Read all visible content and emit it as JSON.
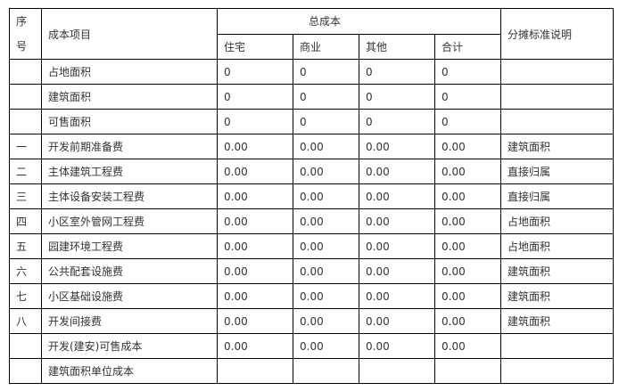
{
  "header": {
    "seq": [
      "序",
      "号"
    ],
    "item": "成本项目",
    "total_cost": "总成本",
    "columns": [
      "住宅",
      "商业",
      "其他",
      "合计"
    ],
    "allocation": "分摊标准说明"
  },
  "rows": [
    {
      "seq": "",
      "item": "占地面积",
      "values": [
        "0",
        "0",
        "0",
        "0"
      ],
      "allocation": ""
    },
    {
      "seq": "",
      "item": "建筑面积",
      "values": [
        "0",
        "0",
        "0",
        "0"
      ],
      "allocation": ""
    },
    {
      "seq": "",
      "item": "可售面积",
      "values": [
        "0",
        "0",
        "0",
        "0"
      ],
      "allocation": ""
    },
    {
      "seq": "一",
      "item": "开发前期准备费",
      "values": [
        "0.00",
        "0.00",
        "0.00",
        "0.00"
      ],
      "allocation": "建筑面积"
    },
    {
      "seq": "二",
      "item": "主体建筑工程费",
      "values": [
        "0.00",
        "0.00",
        "0.00",
        "0.00"
      ],
      "allocation": "直接归属"
    },
    {
      "seq": "三",
      "item": "主体设备安装工程费",
      "values": [
        "0.00",
        "0.00",
        "0.00",
        "0.00"
      ],
      "allocation": "直接归属"
    },
    {
      "seq": "四",
      "item": "小区室外管网工程费",
      "values": [
        "0.00",
        "0.00",
        "0.00",
        "0.00"
      ],
      "allocation": "占地面积"
    },
    {
      "seq": "五",
      "item": "园建环境工程费",
      "values": [
        "0.00",
        "0.00",
        "0.00",
        "0.00"
      ],
      "allocation": "占地面积"
    },
    {
      "seq": "六",
      "item": "公共配套设施费",
      "values": [
        "0.00",
        "0.00",
        "0.00",
        "0.00"
      ],
      "allocation": "建筑面积"
    },
    {
      "seq": "七",
      "item": "小区基础设施费",
      "values": [
        "0.00",
        "0.00",
        "0.00",
        "0.00"
      ],
      "allocation": "建筑面积"
    },
    {
      "seq": "八",
      "item": "开发间接费",
      "values": [
        "0.00",
        "0.00",
        "0.00",
        "0.00"
      ],
      "allocation": "建筑面积"
    },
    {
      "seq": "",
      "item": "开发(建安)可售成本",
      "values": [
        "0.00",
        "0.00",
        "0.00",
        "0.00"
      ],
      "allocation": ""
    },
    {
      "seq": "",
      "item": "建筑面积单位成本",
      "values": [
        "",
        "",
        "",
        ""
      ],
      "allocation": ""
    }
  ]
}
